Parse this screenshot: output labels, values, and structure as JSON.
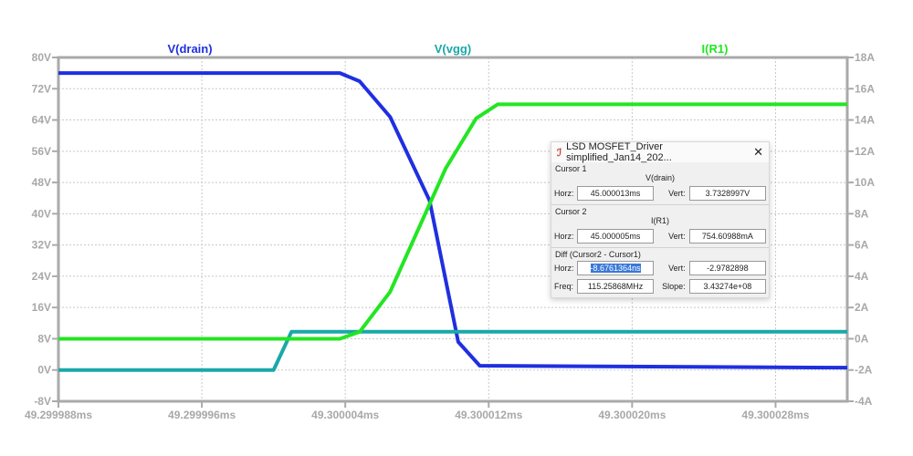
{
  "chart_data": {
    "type": "line",
    "xlabel": "",
    "xlim": [
      49.299988,
      49.300032
    ],
    "x_ticks": [
      "49.299988ms",
      "49.299996ms",
      "49.300004ms",
      "49.300012ms",
      "49.300020ms",
      "49.300028ms"
    ],
    "x_tick_values": [
      49.299988,
      49.299996,
      49.300004,
      49.300012,
      49.30002,
      49.300028
    ],
    "left_axis": {
      "ylim": [
        -8,
        80
      ],
      "ticks": [
        "80V",
        "72V",
        "64V",
        "56V",
        "48V",
        "40V",
        "32V",
        "24V",
        "16V",
        "8V",
        "0V",
        "-8V"
      ]
    },
    "right_axis": {
      "ylim": [
        -4,
        18
      ],
      "ticks": [
        "18A",
        "16A",
        "14A",
        "12A",
        "10A",
        "8A",
        "6A",
        "4A",
        "2A",
        "0A",
        "-2A",
        "-4A"
      ]
    },
    "grid": true,
    "series": [
      {
        "name": "V(drain)",
        "axis": "left",
        "color": "#1f2fe0",
        "x": [
          49.299988,
          49.3000037,
          49.3000048,
          49.3000065,
          49.3000087,
          49.3000103,
          49.3000115,
          49.300032
        ],
        "y": [
          76,
          76,
          73.9,
          64.8,
          43.4,
          7.2,
          1.1,
          0.6
        ]
      },
      {
        "name": "V(vgg)",
        "axis": "left",
        "color": "#1aa8a8",
        "x": [
          49.299988,
          49.3,
          49.300001,
          49.300032
        ],
        "y": [
          0,
          0,
          9.8,
          9.8
        ]
      },
      {
        "name": "I(R1)",
        "axis": "right",
        "color": "#22e622",
        "x": [
          49.299988,
          49.3000037,
          49.3000048,
          49.3000065,
          49.3000096,
          49.3000113,
          49.3000125,
          49.300032
        ],
        "y": [
          0,
          0,
          0.44,
          3.0,
          10.9,
          14.1,
          15.0,
          15.0
        ]
      }
    ]
  },
  "dialog": {
    "title": "LSD MOSFET_Driver simplified_Jan14_202...",
    "close": "✕",
    "logo": "ℐ",
    "cursor1": {
      "label": "Cursor 1",
      "signal": "V(drain)",
      "horz_label": "Horz:",
      "horz": "45.000013ms",
      "vert_label": "Vert:",
      "vert": "3.7328997V"
    },
    "cursor2": {
      "label": "Cursor 2",
      "signal": "I(R1)",
      "horz_label": "Horz:",
      "horz": "45.000005ms",
      "vert_label": "Vert:",
      "vert": "754.60988mA"
    },
    "diff": {
      "label": "Diff (Cursor2 - Cursor1)",
      "horz_label": "Horz:",
      "horz": "-8.6761364ns",
      "vert_label": "Vert:",
      "vert": "-2.9782898",
      "freq_label": "Freq:",
      "freq": "115.25868MHz",
      "slope_label": "Slope:",
      "slope": "3.43274e+08"
    }
  }
}
